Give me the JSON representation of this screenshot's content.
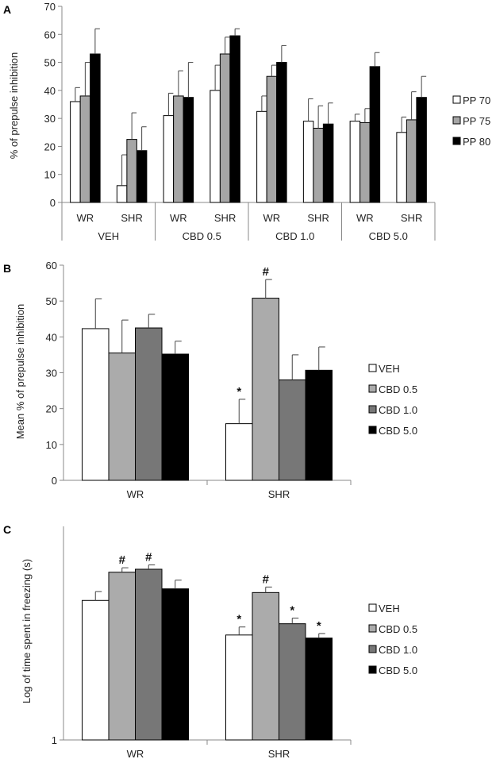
{
  "colors": {
    "pp70": "#ffffff",
    "pp75": "#a6a6a6",
    "pp80": "#000000",
    "veh": "#ffffff",
    "cbd05": "#ababab",
    "cbd10": "#777777",
    "cbd50": "#000000"
  },
  "chart_data": [
    {
      "panel": "A",
      "type": "bar",
      "ylabel": "% of prepulse inhibition",
      "ylim": [
        0,
        70
      ],
      "yticks": [
        0,
        10,
        20,
        30,
        40,
        50,
        60,
        70
      ],
      "categories": [
        "WR",
        "SHR",
        "WR",
        "SHR",
        "WR",
        "SHR",
        "WR",
        "SHR"
      ],
      "groups": [
        "VEH",
        "CBD 0.5",
        "CBD 1.0",
        "CBD 5.0"
      ],
      "series": [
        {
          "name": "PP 70",
          "values": [
            36,
            6,
            31,
            40,
            32.5,
            29,
            29,
            25
          ],
          "errors": [
            5,
            11,
            8,
            9,
            5.5,
            8,
            2.5,
            5.5
          ]
        },
        {
          "name": "PP 75",
          "values": [
            38,
            22.5,
            38,
            53,
            45,
            26.5,
            28.5,
            29.5
          ],
          "errors": [
            12,
            9.5,
            9,
            6,
            4,
            8,
            5,
            10
          ]
        },
        {
          "name": "PP 80",
          "values": [
            53,
            18.5,
            37.5,
            59.5,
            50,
            28,
            48.5,
            37.5
          ],
          "errors": [
            9,
            8.5,
            12.5,
            2.5,
            6,
            7.5,
            5,
            7.5
          ]
        }
      ],
      "legend_position": "right"
    },
    {
      "panel": "B",
      "type": "bar",
      "ylabel": "Mean % of prepulse inhibition",
      "ylim": [
        0,
        60
      ],
      "yticks": [
        0,
        10,
        20,
        30,
        40,
        50,
        60
      ],
      "categories": [
        "WR",
        "SHR"
      ],
      "series": [
        {
          "name": "VEH",
          "values": [
            42.3,
            15.8
          ],
          "errors": [
            8.3,
            6.8
          ],
          "markers": [
            "",
            "*"
          ]
        },
        {
          "name": "CBD 0.5",
          "values": [
            35.5,
            50.8
          ],
          "errors": [
            9.2,
            5.2
          ],
          "markers": [
            "",
            "#"
          ]
        },
        {
          "name": "CBD 1.0",
          "values": [
            42.5,
            28.0
          ],
          "errors": [
            3.8,
            7.0
          ],
          "markers": [
            "",
            ""
          ]
        },
        {
          "name": "CBD 5.0",
          "values": [
            35.2,
            30.7
          ],
          "errors": [
            3.6,
            6.5
          ],
          "markers": [
            "",
            ""
          ]
        }
      ],
      "legend_position": "right"
    },
    {
      "panel": "C",
      "type": "bar",
      "ylabel": "Log of time spent in freezing (s)",
      "log_scale": true,
      "ylim": [
        1,
        10
      ],
      "yticks": [
        1
      ],
      "categories": [
        "WR",
        "SHR"
      ],
      "series": [
        {
          "name": "VEH",
          "values": [
            4.5,
            3.1
          ],
          "errors": [
            0.45,
            0.28
          ],
          "markers": [
            "",
            "*"
          ]
        },
        {
          "name": "CBD 0.5",
          "values": [
            6.1,
            4.9
          ],
          "errors": [
            0.3,
            0.3
          ],
          "markers": [
            "#",
            "#"
          ]
        },
        {
          "name": "CBD 1.0",
          "values": [
            6.3,
            3.5
          ],
          "errors": [
            0.3,
            0.22
          ],
          "markers": [
            "#",
            "*"
          ]
        },
        {
          "name": "CBD 5.0",
          "values": [
            5.1,
            3.0
          ],
          "errors": [
            0.5,
            0.15
          ],
          "markers": [
            "",
            "*"
          ]
        }
      ],
      "legend_position": "right"
    }
  ]
}
